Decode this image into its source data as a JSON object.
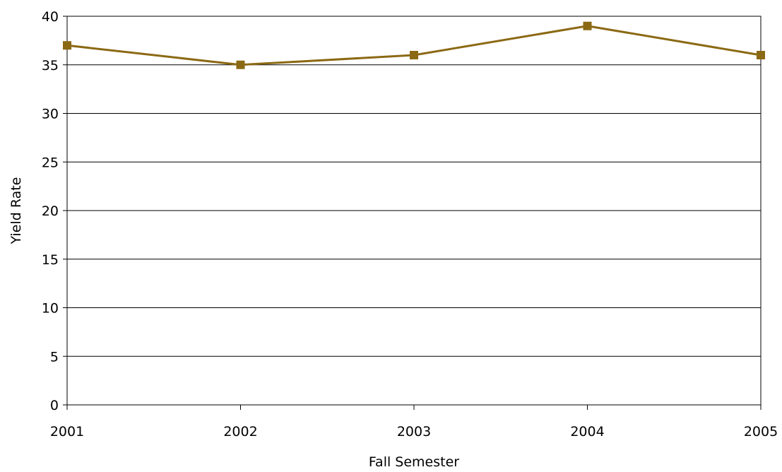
{
  "chart_data": {
    "type": "line",
    "title": "",
    "xlabel": "Fall Semester",
    "ylabel": "Yield Rate",
    "categories": [
      "2001",
      "2002",
      "2003",
      "2004",
      "2005"
    ],
    "series": [
      {
        "values": [
          37,
          35,
          36,
          39,
          36
        ]
      }
    ],
    "ylim": [
      0,
      40
    ],
    "yticks": [
      "0",
      "5",
      "10",
      "15",
      "20",
      "25",
      "30",
      "35",
      "40"
    ],
    "grid": "horizontal",
    "legend": "none",
    "line_color": "#8B6914",
    "marker": "square"
  }
}
